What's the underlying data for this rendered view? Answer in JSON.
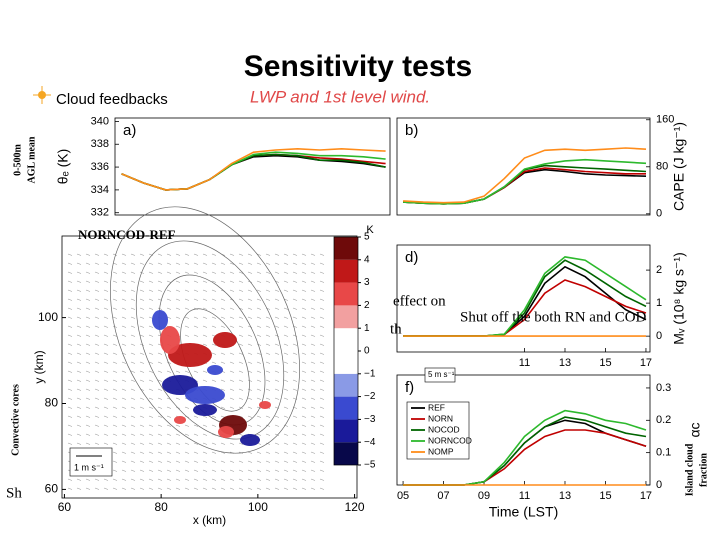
{
  "slide": {
    "title": "Sensitivity tests",
    "bullet": "Cloud feedbacks",
    "caption": "LWP and 1st level wind.",
    "left_label_top": [
      "0-500m",
      "AGL mean"
    ],
    "left_label_bottom": "Convective cores",
    "right_label": [
      "Island cloud",
      "fraction"
    ],
    "fragments": [
      "effect on",
      "Shut off the both RN and COD",
      "th",
      "Sh",
      "5 m s⁻¹"
    ]
  },
  "chart_data": [
    {
      "type": "line",
      "label": "a)",
      "ylabel": "θₑ (K)",
      "axis_side": "left",
      "x": [
        5,
        6,
        7,
        8,
        9,
        10,
        11,
        12,
        13,
        14,
        15,
        16,
        17
      ],
      "xlim": [
        4.7,
        17.2
      ],
      "ylim": [
        331.8,
        340.3
      ],
      "yticks": [
        332,
        334,
        336,
        338,
        340
      ],
      "series": [
        {
          "color": "#000000",
          "values": [
            335.4,
            334.6,
            334.0,
            334.1,
            334.9,
            336.2,
            336.9,
            337.0,
            336.9,
            336.6,
            336.5,
            336.3,
            336.0
          ]
        },
        {
          "color": "#c00000",
          "values": [
            335.4,
            334.6,
            334.0,
            334.1,
            334.9,
            336.2,
            337.0,
            337.1,
            337.0,
            336.8,
            336.7,
            336.5,
            336.3
          ]
        },
        {
          "color": "#006400",
          "values": [
            335.4,
            334.6,
            334.0,
            334.1,
            334.9,
            336.2,
            337.0,
            337.1,
            337.0,
            336.6,
            336.6,
            336.4,
            336.0
          ]
        },
        {
          "color": "#2db92d",
          "values": [
            335.4,
            334.6,
            334.0,
            334.1,
            334.9,
            336.2,
            337.1,
            337.3,
            337.2,
            337.0,
            337.0,
            336.9,
            336.7
          ]
        },
        {
          "color": "#ff8c1a",
          "values": [
            335.4,
            334.6,
            334.0,
            334.1,
            334.9,
            336.3,
            337.3,
            337.5,
            337.6,
            337.5,
            337.6,
            337.5,
            337.4
          ]
        }
      ]
    },
    {
      "type": "line",
      "label": "b)",
      "ylabel": "CAPE (J kg⁻¹)",
      "axis_side": "right",
      "x": [
        5,
        6,
        7,
        8,
        9,
        10,
        11,
        12,
        13,
        14,
        15,
        16,
        17
      ],
      "xlim": [
        4.7,
        17.2
      ],
      "ylim": [
        -2,
        163
      ],
      "yticks": [
        0,
        80,
        160
      ],
      "series": [
        {
          "color": "#000000",
          "values": [
            20,
            18,
            17,
            18,
            25,
            45,
            70,
            75,
            72,
            68,
            66,
            65,
            64
          ]
        },
        {
          "color": "#c00000",
          "values": [
            20,
            18,
            17,
            18,
            25,
            45,
            72,
            78,
            75,
            72,
            70,
            68,
            68
          ]
        },
        {
          "color": "#006400",
          "values": [
            20,
            18,
            17,
            18,
            25,
            46,
            75,
            82,
            80,
            78,
            76,
            74,
            72
          ]
        },
        {
          "color": "#2db92d",
          "values": [
            20,
            18,
            17,
            18,
            25,
            46,
            76,
            85,
            90,
            92,
            90,
            88,
            86
          ]
        },
        {
          "color": "#ff8c1a",
          "values": [
            22,
            20,
            19,
            20,
            30,
            60,
            95,
            108,
            110,
            108,
            110,
            112,
            110
          ]
        }
      ]
    },
    {
      "type": "line",
      "label": "d)",
      "ylabel": "Mᵥ (10⁸ kg s⁻¹)",
      "axis_side": "right",
      "x": [
        5,
        6,
        7,
        8,
        9,
        10,
        11,
        12,
        13,
        14,
        15,
        16,
        17
      ],
      "xlim": [
        4.7,
        17.2
      ],
      "xticks": [
        11,
        13,
        15,
        17
      ],
      "ylim": [
        -0.48,
        2.76
      ],
      "yticks": [
        0,
        1,
        2
      ],
      "series": [
        {
          "color": "#000000",
          "values": [
            0,
            0,
            0,
            0,
            0,
            0.05,
            0.6,
            1.6,
            2.1,
            1.8,
            1.3,
            0.8,
            0.5
          ]
        },
        {
          "color": "#c00000",
          "values": [
            0,
            0,
            0,
            0,
            0,
            0.05,
            0.5,
            1.3,
            1.7,
            1.5,
            1.2,
            0.9,
            0.7
          ]
        },
        {
          "color": "#006400",
          "values": [
            0,
            0,
            0,
            0,
            0,
            0.06,
            0.7,
            1.8,
            2.3,
            2.0,
            1.6,
            1.2,
            0.9
          ]
        },
        {
          "color": "#2db92d",
          "values": [
            0,
            0,
            0,
            0,
            0,
            0.06,
            0.8,
            1.9,
            2.4,
            2.3,
            1.9,
            1.5,
            1.1
          ]
        },
        {
          "color": "#ff8c1a",
          "values": [
            0,
            0,
            0,
            0,
            0,
            0,
            0,
            0,
            0,
            0,
            0,
            0,
            0
          ]
        }
      ]
    },
    {
      "type": "line",
      "label": "f)",
      "ylabel": "αc",
      "xlabel": "Time (LST)",
      "axis_side": "right",
      "legend": "upper left",
      "x": [
        5,
        6,
        7,
        8,
        9,
        10,
        11,
        12,
        13,
        14,
        15,
        16,
        17
      ],
      "xlim": [
        4.7,
        17.2
      ],
      "xticks": [
        {
          "value": 5,
          "label": "05"
        },
        {
          "value": 7,
          "label": "07"
        },
        {
          "value": 9,
          "label": "09"
        },
        11,
        13,
        15,
        17
      ],
      "ylim": [
        0,
        0.34
      ],
      "yticks": [
        0,
        0.1,
        0.2,
        0.3
      ],
      "series": [
        {
          "name": "REF",
          "color": "#000000",
          "values": [
            0,
            0,
            0,
            0,
            0.01,
            0.06,
            0.13,
            0.18,
            0.2,
            0.19,
            0.16,
            0.14,
            0.12
          ]
        },
        {
          "name": "NORN",
          "color": "#c00000",
          "values": [
            0,
            0,
            0,
            0,
            0.01,
            0.05,
            0.11,
            0.15,
            0.17,
            0.17,
            0.16,
            0.14,
            0.12
          ]
        },
        {
          "name": "NOCOD",
          "color": "#006400",
          "values": [
            0,
            0,
            0,
            0,
            0.01,
            0.06,
            0.13,
            0.18,
            0.21,
            0.2,
            0.18,
            0.16,
            0.15
          ]
        },
        {
          "name": "NORNCOD",
          "color": "#2db92d",
          "values": [
            0,
            0,
            0,
            0,
            0.01,
            0.07,
            0.15,
            0.2,
            0.23,
            0.22,
            0.2,
            0.19,
            0.17
          ]
        },
        {
          "name": "NOMP",
          "color": "#ff8c1a",
          "values": [
            0,
            0,
            0,
            0,
            0,
            0,
            0,
            0,
            0,
            0,
            0,
            0,
            0
          ]
        }
      ]
    },
    {
      "type": "map",
      "title": "NORNCOD-REF",
      "xlabel": "x (km)",
      "ylabel": "y (km)",
      "xlim": [
        59.5,
        120.5
      ],
      "ylim": [
        58,
        119
      ],
      "xticks": [
        60,
        80,
        100,
        120
      ],
      "yticks": [
        60,
        80,
        100
      ],
      "colorbar_title": "K",
      "colorbar_lim": [
        -5,
        5
      ],
      "colorbar_ticks": [
        5,
        4,
        3,
        2,
        1,
        0,
        {
          "value": -1,
          "label": "−1"
        },
        {
          "value": -2,
          "label": "−2"
        },
        {
          "value": -3,
          "label": "−3"
        },
        {
          "value": -4,
          "label": "−4"
        },
        {
          "value": -5,
          "label": "−5"
        }
      ],
      "colormap": [
        "#08084a",
        "#1a1a9a",
        "#3a4ad0",
        "#8a9ae6",
        "#ffffff",
        "#ffffff",
        "#f2a0a0",
        "#e84848",
        "#c01818",
        "#6e0a0a"
      ],
      "scale_label": "1 m s⁻¹"
    }
  ]
}
